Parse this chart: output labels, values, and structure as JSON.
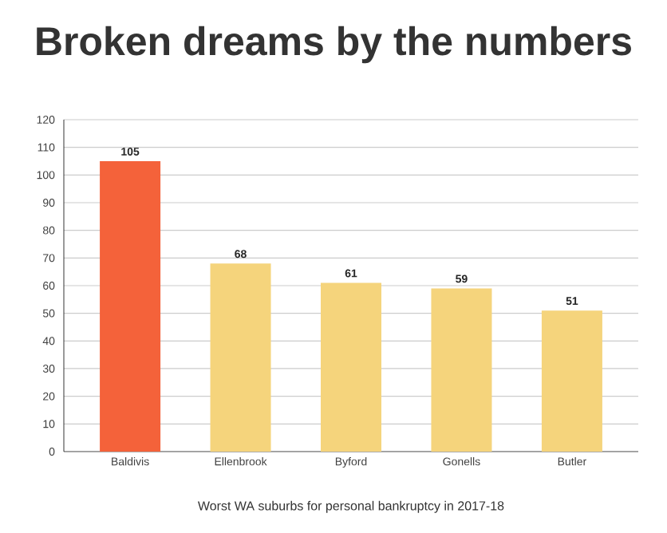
{
  "chart_data": {
    "type": "bar",
    "title": "Broken dreams by the numbers",
    "xlabel": "Worst WA suburbs for personal bankruptcy in 2017-18",
    "categories": [
      "Baldivis",
      "Ellenbrook",
      "Byford",
      "Gonells",
      "Butler"
    ],
    "values": [
      105,
      68,
      61,
      59,
      51
    ],
    "colors": [
      "#f4623a",
      "#f5d47c",
      "#f5d47c",
      "#f5d47c",
      "#f5d47c"
    ],
    "ylim": [
      0,
      120
    ],
    "yticks": [
      0,
      10,
      20,
      30,
      40,
      50,
      60,
      70,
      80,
      90,
      100,
      110,
      120
    ],
    "grid": "y",
    "data_labels": true
  }
}
